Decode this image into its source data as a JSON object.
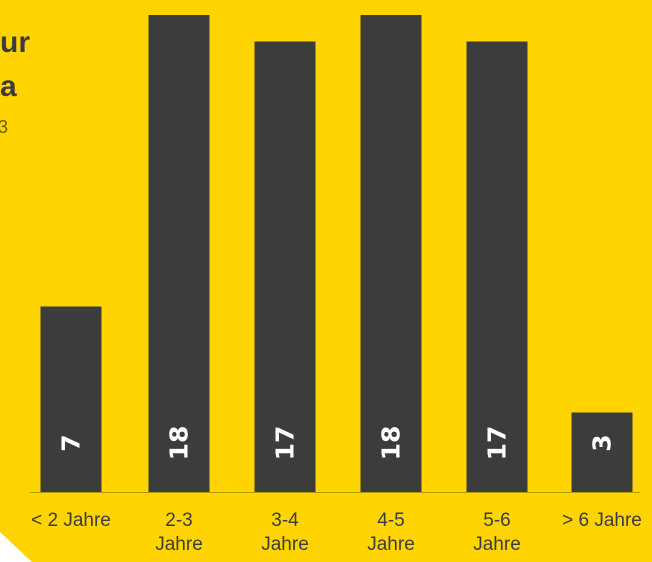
{
  "title_lines": [
    "ur",
    "a",
    "3"
  ],
  "colors": {
    "background": "#FFD400",
    "bar": "#3C3C3C",
    "value_label": "#FFFFFF",
    "corner": "#FFFFFF"
  },
  "chart_data": {
    "type": "bar",
    "categories": [
      "< 2 Jahre",
      "2-3\nJahre",
      "3-4\nJahre",
      "4-5\nJahre",
      "5-6\nJahre",
      "> 6 Jahre"
    ],
    "category_lines": [
      [
        "< 2 Jahre"
      ],
      [
        "2-3",
        "Jahre"
      ],
      [
        "3-4",
        "Jahre"
      ],
      [
        "4-5",
        "Jahre"
      ],
      [
        "5-6",
        "Jahre"
      ],
      [
        "> 6 Jahre"
      ]
    ],
    "values": [
      7,
      18,
      17,
      18,
      17,
      3
    ],
    "value_labels": [
      "7",
      "18",
      "17",
      "18",
      "17",
      "3"
    ],
    "ylim": [
      0,
      18
    ],
    "grid": false,
    "legend": "none"
  }
}
